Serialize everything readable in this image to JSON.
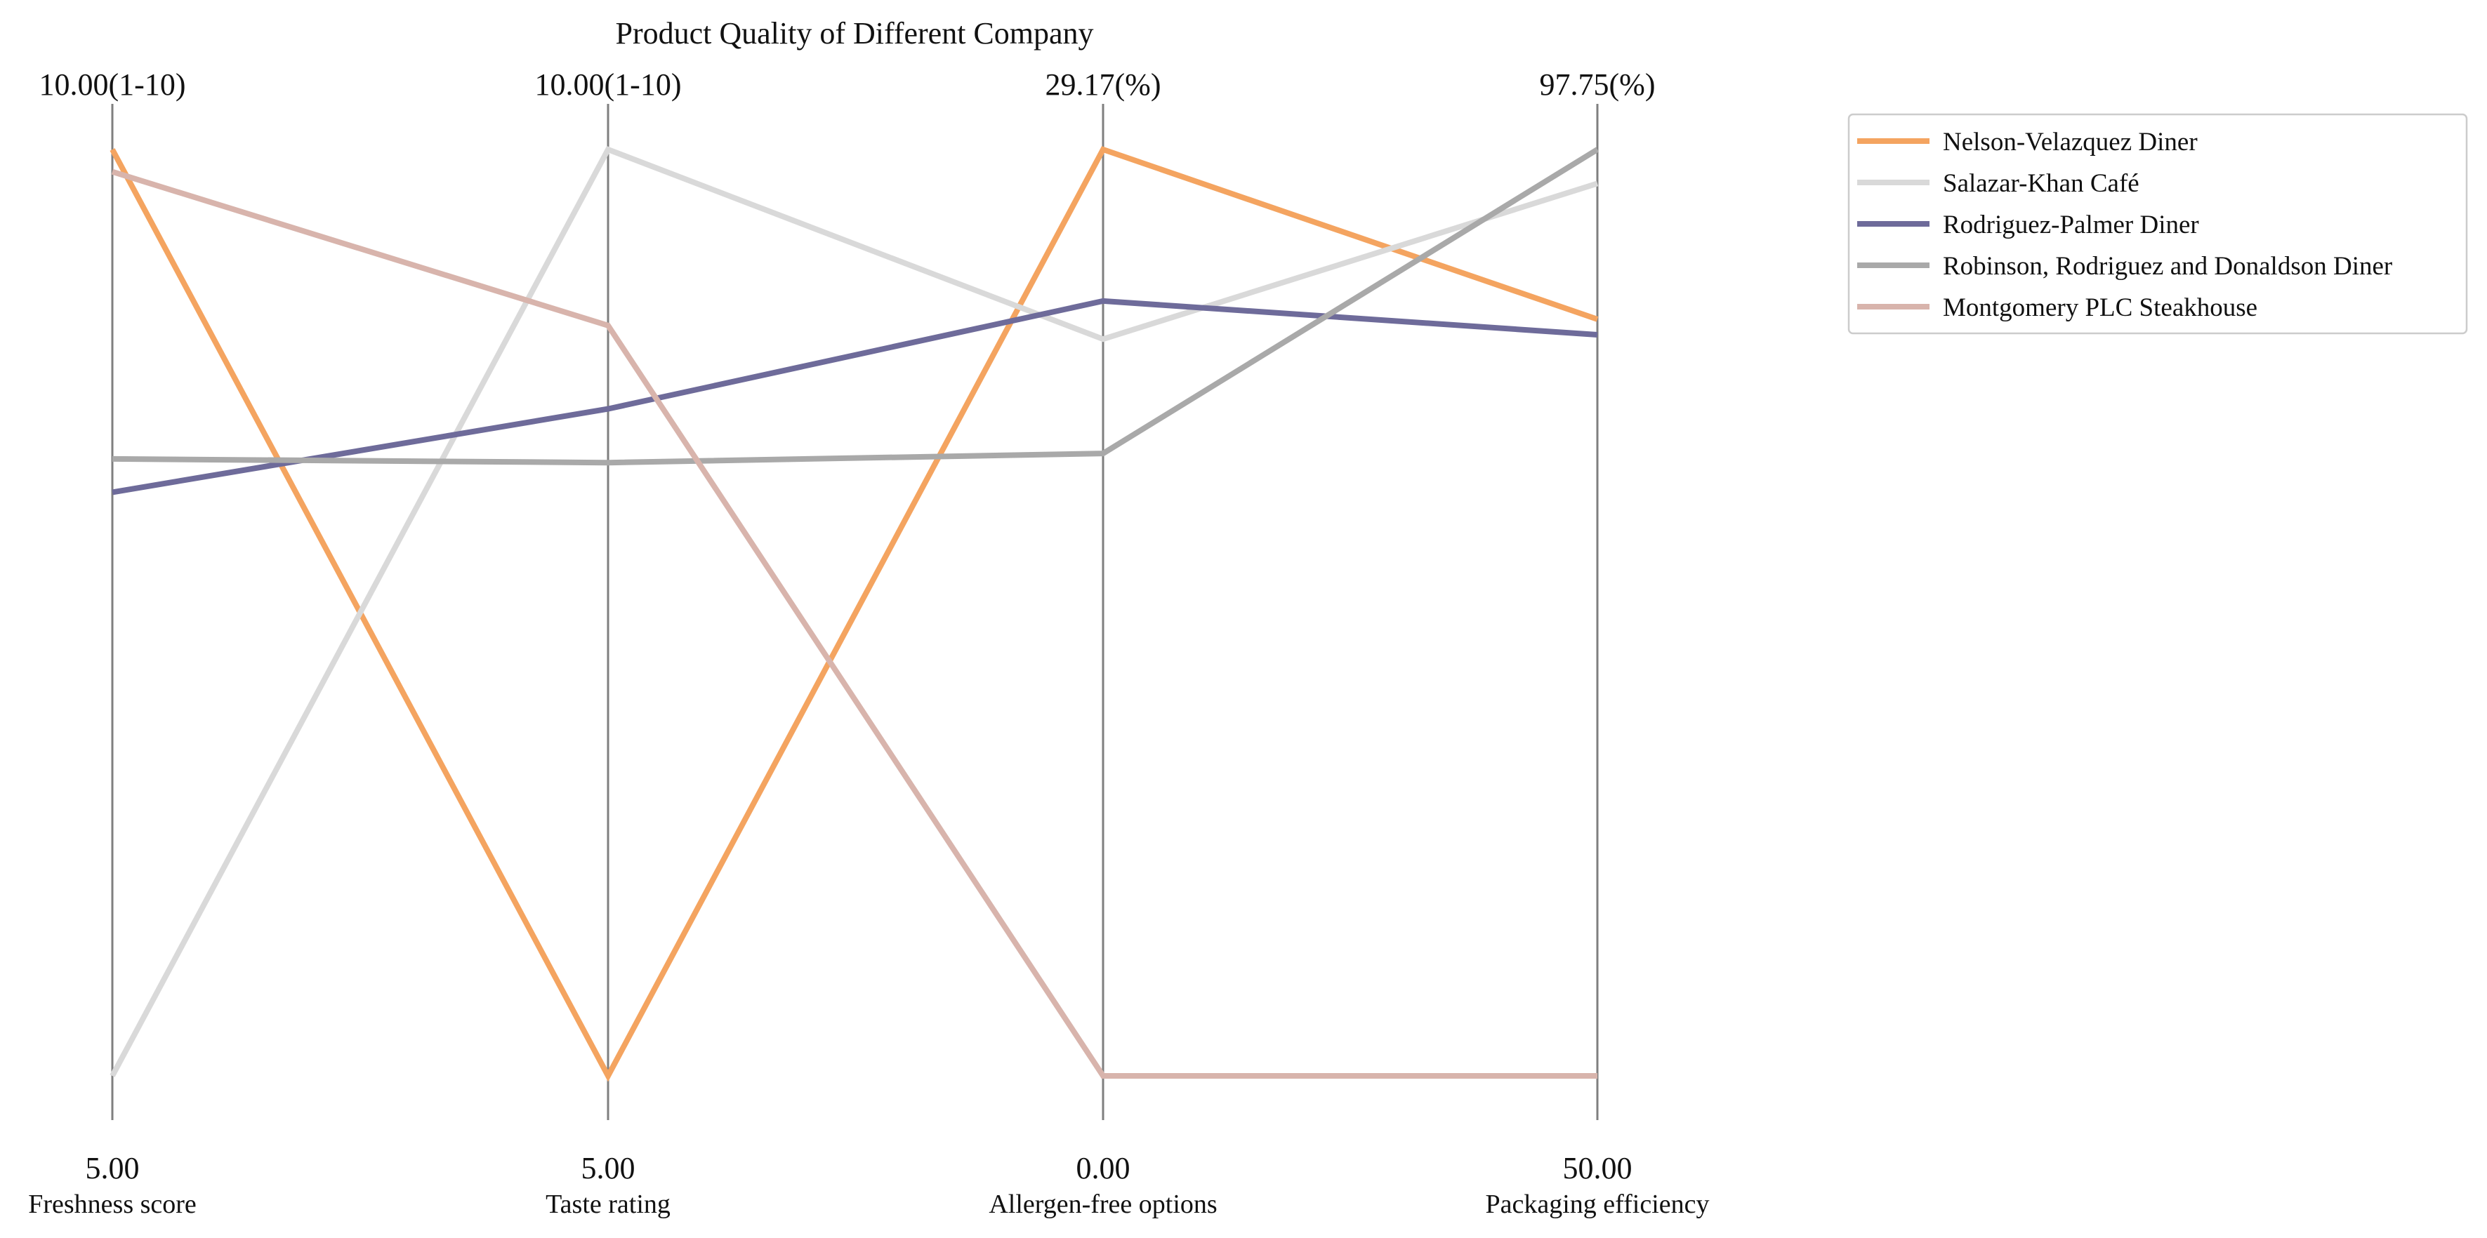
{
  "chart_data": {
    "type": "parallel-coordinates",
    "title": "Product Quality of Different Company",
    "axes": [
      {
        "label": "Freshness score",
        "unit": "(1-10)",
        "min": 5.0,
        "max": 10.0,
        "min_label": "5.00",
        "max_label": "10.00(1-10)"
      },
      {
        "label": "Taste rating",
        "unit": "(1-10)",
        "min": 5.0,
        "max": 10.0,
        "min_label": "5.00",
        "max_label": "10.00(1-10)"
      },
      {
        "label": "Allergen-free options",
        "unit": "(%)",
        "min": 0.0,
        "max": 29.17,
        "min_label": "0.00",
        "max_label": "29.17(%)"
      },
      {
        "label": "Packaging efficiency",
        "unit": "(%)",
        "min": 50.0,
        "max": 97.75,
        "min_label": "50.00",
        "max_label": "97.75(%)"
      }
    ],
    "series": [
      {
        "name": "Nelson-Velazquez  Diner",
        "color": "#f4a460",
        "values": [
          10.0,
          5.0,
          29.17,
          89.0
        ]
      },
      {
        "name": "Salazar-Khan  Café",
        "color": "#d9d9d9",
        "values": [
          5.0,
          10.0,
          23.2,
          96.0
        ]
      },
      {
        "name": "Rodriguez-Palmer  Diner",
        "color": "#6e6b9a",
        "values": [
          8.15,
          8.6,
          24.4,
          88.2
        ]
      },
      {
        "name": "Robinson, Rodriguez and Donaldson  Diner",
        "color": "#a9a9a9",
        "values": [
          8.33,
          8.31,
          19.6,
          97.75
        ]
      },
      {
        "name": "Montgomery PLC  Steakhouse",
        "color": "#d8b4ac",
        "values": [
          9.88,
          9.05,
          0.0,
          50.0
        ]
      }
    ],
    "legend_position": "top-right",
    "grid": false
  }
}
